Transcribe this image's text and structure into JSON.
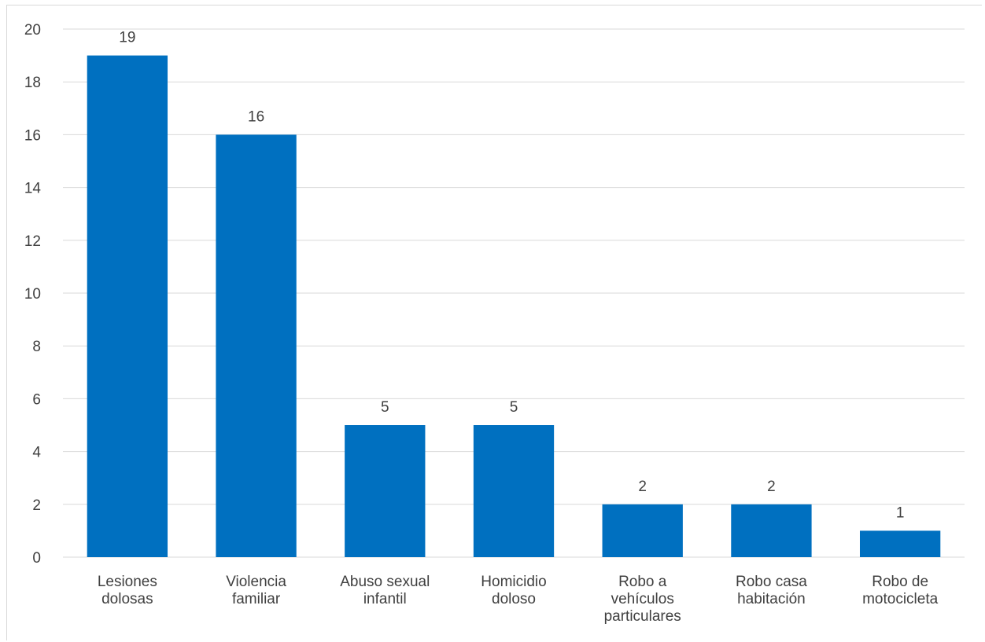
{
  "chart_data": {
    "type": "bar",
    "title": "",
    "xlabel": "",
    "ylabel": "",
    "categories": [
      [
        "Lesiones",
        "dolosas"
      ],
      [
        "Violencia",
        "familiar"
      ],
      [
        "Abuso sexual",
        "infantil"
      ],
      [
        "Homicidio",
        "doloso"
      ],
      [
        "Robo a",
        "vehículos",
        "particulares"
      ],
      [
        "Robo casa",
        "habitación"
      ],
      [
        "Robo de",
        "motocicleta"
      ]
    ],
    "values": [
      19,
      16,
      5,
      5,
      2,
      2,
      1
    ],
    "ylim": [
      0,
      20
    ],
    "yticks": [
      0,
      2,
      4,
      6,
      8,
      10,
      12,
      14,
      16,
      18,
      20
    ],
    "grid": true,
    "legend": "none",
    "bar_color": "#0070c0",
    "grid_color": "#d9d9d9",
    "text_color": "#404040"
  }
}
